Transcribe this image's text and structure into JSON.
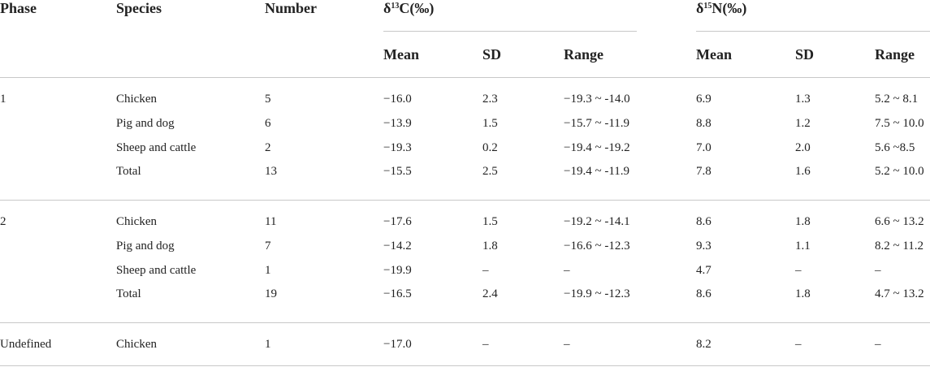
{
  "table": {
    "headers": {
      "phase": "Phase",
      "species": "Species",
      "number": "Number",
      "d13c_prefix": "δ",
      "d13c_sup": "13",
      "d13c_suffix": "C(‰)",
      "d15n_prefix": "δ",
      "d15n_sup": "15",
      "d15n_suffix": "N(‰)",
      "mean": "Mean",
      "sd": "SD",
      "range": "Range"
    },
    "groups": [
      {
        "phase": "1",
        "rows": [
          {
            "species": "Chicken",
            "number": "5",
            "c_mean": "−16.0",
            "c_sd": "2.3",
            "c_range": "−19.3 ~ -14.0",
            "n_mean": "6.9",
            "n_sd": "1.3",
            "n_range": "5.2 ~ 8.1"
          },
          {
            "species": "Pig and dog",
            "number": "6",
            "c_mean": "−13.9",
            "c_sd": "1.5",
            "c_range": "−15.7 ~ -11.9",
            "n_mean": "8.8",
            "n_sd": "1.2",
            "n_range": "7.5 ~ 10.0"
          },
          {
            "species": "Sheep and cattle",
            "number": "2",
            "c_mean": "−19.3",
            "c_sd": "0.2",
            "c_range": "−19.4 ~ -19.2",
            "n_mean": "7.0",
            "n_sd": "2.0",
            "n_range": "5.6 ~8.5"
          },
          {
            "species": "Total",
            "number": "13",
            "c_mean": "−15.5",
            "c_sd": "2.5",
            "c_range": "−19.4 ~ -11.9",
            "n_mean": "7.8",
            "n_sd": "1.6",
            "n_range": "5.2 ~ 10.0"
          }
        ]
      },
      {
        "phase": "2",
        "rows": [
          {
            "species": "Chicken",
            "number": "11",
            "c_mean": "−17.6",
            "c_sd": "1.5",
            "c_range": "−19.2 ~ -14.1",
            "n_mean": "8.6",
            "n_sd": "1.8",
            "n_range": "6.6 ~ 13.2"
          },
          {
            "species": "Pig and dog",
            "number": "7",
            "c_mean": "−14.2",
            "c_sd": "1.8",
            "c_range": "−16.6 ~ -12.3",
            "n_mean": "9.3",
            "n_sd": "1.1",
            "n_range": "8.2 ~ 11.2"
          },
          {
            "species": "Sheep and cattle",
            "number": "1",
            "c_mean": "−19.9",
            "c_sd": "–",
            "c_range": "–",
            "n_mean": "4.7",
            "n_sd": "–",
            "n_range": "–"
          },
          {
            "species": "Total",
            "number": "19",
            "c_mean": "−16.5",
            "c_sd": "2.4",
            "c_range": "−19.9 ~ -12.3",
            "n_mean": "8.6",
            "n_sd": "1.8",
            "n_range": "4.7 ~ 13.2"
          }
        ]
      },
      {
        "phase": "Undefined",
        "rows": [
          {
            "species": "Chicken",
            "number": "1",
            "c_mean": "−17.0",
            "c_sd": "–",
            "c_range": "–",
            "n_mean": "8.2",
            "n_sd": "–",
            "n_range": "–"
          }
        ]
      }
    ]
  }
}
